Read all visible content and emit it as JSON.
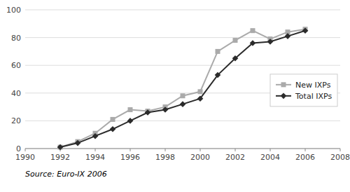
{
  "chart_data": {
    "type": "line",
    "x": [
      1992,
      1993,
      1994,
      1995,
      1996,
      1997,
      1998,
      1999,
      2000,
      2001,
      2002,
      2003,
      2004,
      2005,
      2006
    ],
    "series": [
      {
        "name": "New IXPs",
        "color": "#aaaaaa",
        "marker": "square",
        "values": [
          1,
          5,
          11,
          21,
          28,
          27,
          30,
          38,
          41,
          70,
          78,
          85,
          79,
          84,
          86
        ]
      },
      {
        "name": "Total IXPs",
        "color": "#2b2b2b",
        "marker": "diamond",
        "values": [
          1,
          4,
          9,
          14,
          20,
          26,
          28,
          32,
          36,
          53,
          65,
          76,
          77,
          81,
          85
        ]
      }
    ],
    "xlim": [
      1990,
      2008
    ],
    "ylim": [
      0,
      100
    ],
    "xticks": [
      1990,
      1992,
      1994,
      1996,
      1998,
      2000,
      2002,
      2004,
      2006,
      2008
    ],
    "yticks": [
      0,
      20,
      40,
      60,
      80,
      100
    ],
    "grid": true,
    "legend": "right",
    "annotations": [
      "Source: Euro-IX 2006"
    ]
  }
}
